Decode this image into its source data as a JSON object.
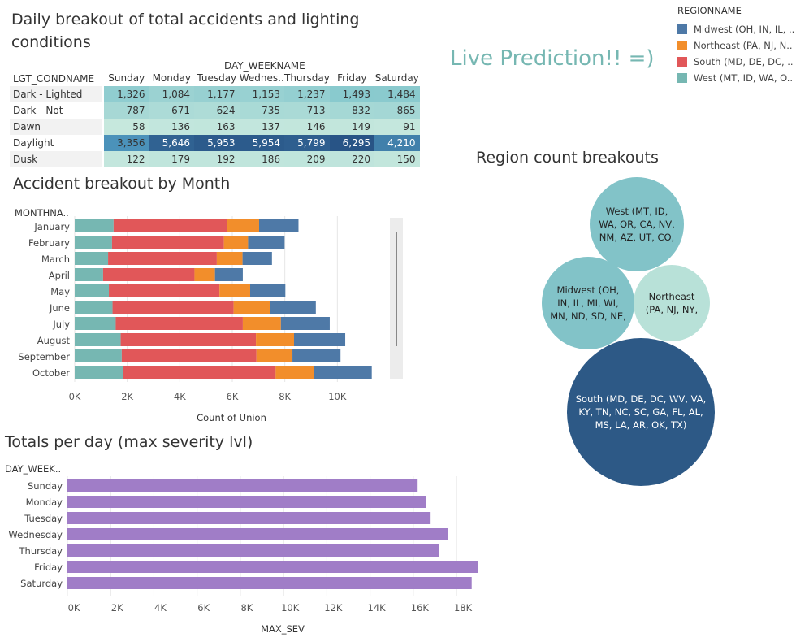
{
  "dashboard": {
    "live_prediction": "Live Prediction!! =)",
    "accent": "#76b7b2"
  },
  "legend": {
    "title": "REGIONNAME",
    "items": [
      {
        "label": "Midwest (OH, IN, IL, ..",
        "color": "#4e79a7"
      },
      {
        "label": "Northeast (PA, NJ, N..",
        "color": "#f28e2b"
      },
      {
        "label": "South (MD, DE, DC, ..",
        "color": "#e15759"
      },
      {
        "label": "West (MT, ID, WA, O..",
        "color": "#76b7b2"
      }
    ]
  },
  "chart_data": [
    {
      "type": "table",
      "title": "Daily breakout of total accidents and lighting conditions",
      "column_header": "DAY_WEEKNAME",
      "row_header": "LGT_CONDNAME",
      "columns": [
        "Sunday",
        "Monday",
        "Tuesday",
        "Wednes..",
        "Thursday",
        "Friday",
        "Saturday"
      ],
      "rows": [
        {
          "name": "Dark - Lighted",
          "values": [
            1326,
            1084,
            1177,
            1153,
            1237,
            1493,
            1484
          ],
          "labels": [
            "1,326",
            "1,084",
            "1,177",
            "1,153",
            "1,237",
            "1,493",
            "1,484"
          ]
        },
        {
          "name": "Dark - Not Lighted",
          "values": [
            787,
            671,
            624,
            735,
            713,
            832,
            865
          ],
          "labels": [
            "787",
            "671",
            "624",
            "735",
            "713",
            "832",
            "865"
          ]
        },
        {
          "name": "Dawn",
          "values": [
            58,
            136,
            163,
            137,
            146,
            149,
            91
          ],
          "labels": [
            "58",
            "136",
            "163",
            "137",
            "146",
            "149",
            "91"
          ]
        },
        {
          "name": "Daylight",
          "values": [
            3356,
            5646,
            5953,
            5954,
            5799,
            6295,
            4210
          ],
          "labels": [
            "3,356",
            "5,646",
            "5,953",
            "5,954",
            "5,799",
            "6,295",
            "4,210"
          ]
        },
        {
          "name": "Dusk",
          "values": [
            122,
            179,
            192,
            186,
            209,
            220,
            150
          ],
          "labels": [
            "122",
            "179",
            "192",
            "186",
            "209",
            "220",
            "150"
          ]
        }
      ]
    },
    {
      "type": "bar",
      "orientation": "horizontal",
      "stacked": true,
      "title": "Accident breakout by Month",
      "ylabel": "MONTHNA..",
      "xlabel": "Count of Union",
      "xlim": [
        0,
        12000
      ],
      "xticks": [
        0,
        2000,
        4000,
        6000,
        8000,
        10000
      ],
      "xtick_labels": [
        "0K",
        "2K",
        "4K",
        "6K",
        "8K",
        "10K"
      ],
      "categories": [
        "January",
        "February",
        "March",
        "April",
        "May",
        "June",
        "July",
        "August",
        "September",
        "October"
      ],
      "series": [
        {
          "name": "West (MT, ID, WA, O..",
          "color": "#76b7b2",
          "values": [
            1480,
            1420,
            1270,
            1080,
            1300,
            1440,
            1560,
            1750,
            1790,
            1830
          ]
        },
        {
          "name": "South (MD, DE, DC, ..",
          "color": "#e15759",
          "values": [
            4320,
            4260,
            4140,
            3480,
            4210,
            4610,
            4840,
            5150,
            5130,
            5820
          ]
        },
        {
          "name": "Northeast (PA, NJ, N..",
          "color": "#f28e2b",
          "values": [
            1220,
            920,
            980,
            780,
            1170,
            1390,
            1450,
            1450,
            1370,
            1470
          ]
        },
        {
          "name": "Midwest (OH, IN, IL, ..",
          "color": "#4e79a7",
          "values": [
            1500,
            1390,
            1120,
            1060,
            1340,
            1740,
            1860,
            1950,
            1830,
            2190
          ]
        }
      ],
      "grid": "vertical"
    },
    {
      "type": "bar",
      "orientation": "horizontal",
      "title": "Totals per day (max severity lvl)",
      "ylabel": "DAY_WEEK..",
      "xlabel": "MAX_SEV",
      "xlim": [
        0,
        19800
      ],
      "xticks": [
        0,
        2000,
        4000,
        6000,
        8000,
        10000,
        12000,
        14000,
        16000,
        18000
      ],
      "xtick_labels": [
        "0K",
        "2K",
        "4K",
        "6K",
        "8K",
        "10K",
        "12K",
        "14K",
        "16K",
        "18K"
      ],
      "categories": [
        "Sunday",
        "Monday",
        "Tuesday",
        "Wednesday",
        "Thursday",
        "Friday",
        "Saturday"
      ],
      "values": [
        16200,
        16600,
        16800,
        17600,
        17200,
        19000,
        18700
      ],
      "color": "#a07dc7",
      "grid": "vertical"
    },
    {
      "type": "bubble",
      "title": "Region count breakouts",
      "items": [
        {
          "region": "West",
          "label_lines": [
            "West (MT, ID,",
            "WA, OR, CA, NV,",
            "NM, AZ, UT, CO,"
          ],
          "value": 12400,
          "color": "#82c3c8",
          "text_color": "#222"
        },
        {
          "region": "Midwest",
          "label_lines": [
            "Midwest (OH,",
            "IN, IL, MI, WI,",
            "MN, ND, SD, NE,"
          ],
          "value": 12400,
          "color": "#82c3c8",
          "text_color": "#222"
        },
        {
          "region": "Northeast",
          "label_lines": [
            "Northeast",
            "(PA, NJ, NY,"
          ],
          "value": 9000,
          "color": "#b8e1d8",
          "text_color": "#222"
        },
        {
          "region": "South",
          "label_lines": [
            "South (MD, DE, DC, WV, VA,",
            "KY, TN, NC, SC, GA, FL, AL,",
            "MS, LA, AR, OK, TX)"
          ],
          "value": 33000,
          "color": "#2d5986",
          "text_color": "#ffffff"
        }
      ]
    }
  ]
}
